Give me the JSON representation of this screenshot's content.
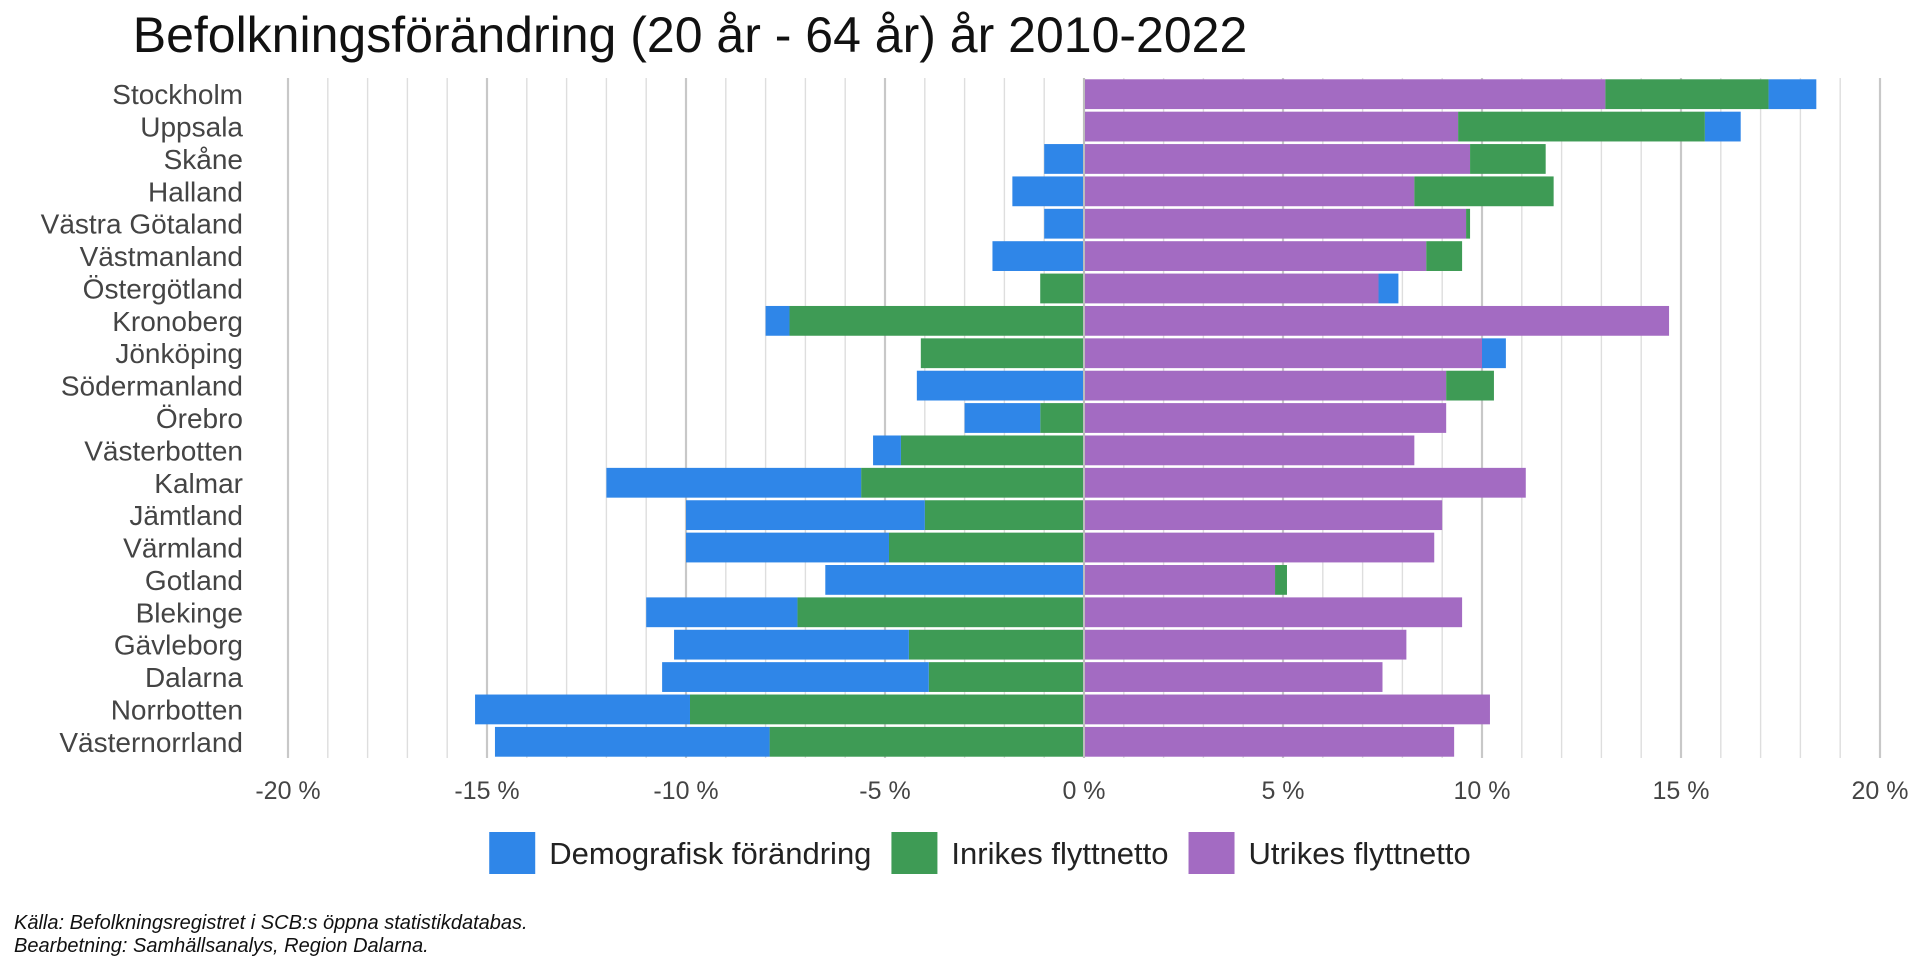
{
  "chart_data": {
    "type": "bar",
    "orientation": "horizontal",
    "stacked": true,
    "title": "Befolkningsförändring (20 år - 64 år) år 2010-2022",
    "categories": [
      "Stockholm",
      "Uppsala",
      "Skåne",
      "Halland",
      "Västra Götaland",
      "Västmanland",
      "Östergötland",
      "Kronoberg",
      "Jönköping",
      "Södermanland",
      "Örebro",
      "Västerbotten",
      "Kalmar",
      "Jämtland",
      "Värmland",
      "Gotland",
      "Blekinge",
      "Gävleborg",
      "Dalarna",
      "Norrbotten",
      "Västernorrland"
    ],
    "series": [
      {
        "name": "Utrikes flyttnetto",
        "color": "#A36BC2",
        "values": [
          13.1,
          9.4,
          9.7,
          8.3,
          9.6,
          8.6,
          7.4,
          14.7,
          10.0,
          9.1,
          9.1,
          8.3,
          11.1,
          9.0,
          8.8,
          4.8,
          9.5,
          8.1,
          7.5,
          10.2,
          9.3
        ]
      },
      {
        "name": "Inrikes flyttnetto",
        "color": "#3E9B55",
        "values": [
          4.1,
          6.2,
          1.9,
          3.5,
          0.1,
          0.9,
          -1.1,
          -7.4,
          -4.1,
          1.2,
          -1.1,
          -4.6,
          -5.6,
          -4.0,
          -4.9,
          0.3,
          -7.2,
          -4.4,
          -3.9,
          -9.9,
          -7.9
        ]
      },
      {
        "name": "Demografisk förändring",
        "color": "#2F86E8",
        "values": [
          1.2,
          0.9,
          -1.0,
          -1.8,
          -1.0,
          -2.3,
          0.5,
          -0.6,
          0.6,
          -4.2,
          -1.9,
          -0.7,
          -6.4,
          -6.0,
          -5.1,
          -6.5,
          -3.8,
          -5.9,
          -6.7,
          -5.4,
          -6.9
        ]
      }
    ],
    "xlim": [
      -20,
      20
    ],
    "xticks": [
      -20,
      -15,
      -10,
      -5,
      0,
      5,
      10,
      15,
      20
    ],
    "xtick_labels": [
      "-20 %",
      "-15 %",
      "-10 %",
      "-5 %",
      "0 %",
      "5 %",
      "10 %",
      "15 %",
      "20 %"
    ],
    "grid": true,
    "legend": {
      "position": "bottom",
      "entries": [
        {
          "label": "Demografisk förändring",
          "color": "#2F86E8"
        },
        {
          "label": "Inrikes flyttnetto",
          "color": "#3E9B55"
        },
        {
          "label": "Utrikes flyttnetto",
          "color": "#A36BC2"
        }
      ]
    }
  },
  "source_line1": "Källa: Befolkningsregistret i SCB:s öppna statistikdatabas.",
  "source_line2": "Bearbetning: Samhällsanalys, Region Dalarna."
}
